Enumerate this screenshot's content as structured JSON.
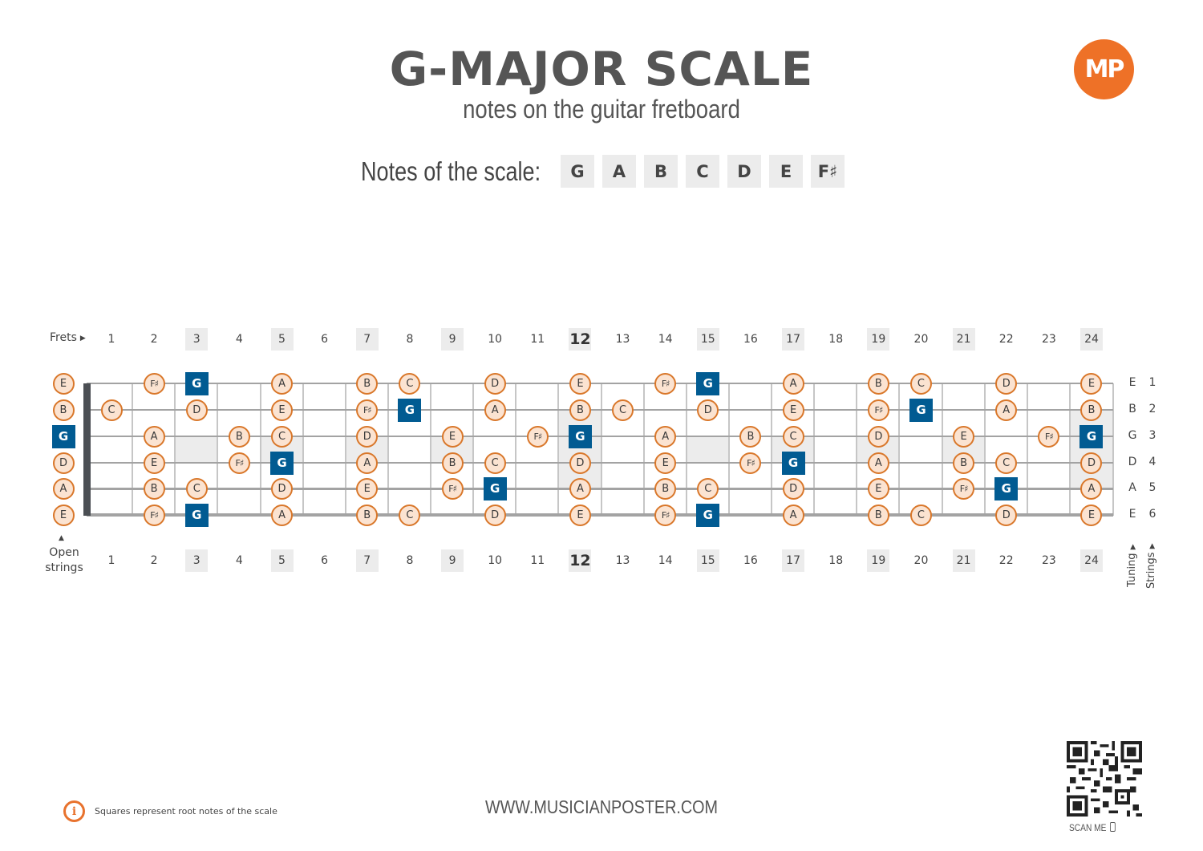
{
  "header": {
    "title": "G-MAJOR SCALE",
    "subtitle": "notes on the guitar fretboard",
    "logo_text": "MP"
  },
  "scale": {
    "label": "Notes of the scale:",
    "notes": [
      "G",
      "A",
      "B",
      "C",
      "D",
      "E",
      "F♯"
    ]
  },
  "colors": {
    "accent_orange": "#ee7127",
    "note_fill": "#fbe3d1",
    "note_border": "#d9772a",
    "root_blue": "#015b92",
    "marker_gray": "#ececec"
  },
  "fretboard": {
    "frets_label": "Frets",
    "open_strings_label": "Open strings",
    "tuning_label": "Tuning",
    "strings_label": "Strings",
    "fret_numbers": [
      1,
      2,
      3,
      4,
      5,
      6,
      7,
      8,
      9,
      10,
      11,
      12,
      13,
      14,
      15,
      16,
      17,
      18,
      19,
      20,
      21,
      22,
      23,
      24
    ],
    "marked_frets": [
      3,
      5,
      7,
      9,
      12,
      15,
      17,
      19,
      21,
      24
    ],
    "double_marked_frets": [
      12,
      24
    ],
    "strings": [
      {
        "number": "1",
        "tuning": "E"
      },
      {
        "number": "2",
        "tuning": "B"
      },
      {
        "number": "3",
        "tuning": "G"
      },
      {
        "number": "4",
        "tuning": "D"
      },
      {
        "number": "5",
        "tuning": "A"
      },
      {
        "number": "6",
        "tuning": "E"
      }
    ],
    "notes": [
      {
        "s": 1,
        "f": 0,
        "n": "E"
      },
      {
        "s": 1,
        "f": 2,
        "n": "F♯"
      },
      {
        "s": 1,
        "f": 3,
        "n": "G",
        "root": true
      },
      {
        "s": 1,
        "f": 5,
        "n": "A"
      },
      {
        "s": 1,
        "f": 7,
        "n": "B"
      },
      {
        "s": 1,
        "f": 8,
        "n": "C"
      },
      {
        "s": 1,
        "f": 10,
        "n": "D"
      },
      {
        "s": 1,
        "f": 12,
        "n": "E"
      },
      {
        "s": 1,
        "f": 14,
        "n": "F♯"
      },
      {
        "s": 1,
        "f": 15,
        "n": "G",
        "root": true
      },
      {
        "s": 1,
        "f": 17,
        "n": "A"
      },
      {
        "s": 1,
        "f": 19,
        "n": "B"
      },
      {
        "s": 1,
        "f": 20,
        "n": "C"
      },
      {
        "s": 1,
        "f": 22,
        "n": "D"
      },
      {
        "s": 1,
        "f": 24,
        "n": "E"
      },
      {
        "s": 2,
        "f": 0,
        "n": "B"
      },
      {
        "s": 2,
        "f": 1,
        "n": "C"
      },
      {
        "s": 2,
        "f": 3,
        "n": "D"
      },
      {
        "s": 2,
        "f": 5,
        "n": "E"
      },
      {
        "s": 2,
        "f": 7,
        "n": "F♯"
      },
      {
        "s": 2,
        "f": 8,
        "n": "G",
        "root": true
      },
      {
        "s": 2,
        "f": 10,
        "n": "A"
      },
      {
        "s": 2,
        "f": 12,
        "n": "B"
      },
      {
        "s": 2,
        "f": 13,
        "n": "C"
      },
      {
        "s": 2,
        "f": 15,
        "n": "D"
      },
      {
        "s": 2,
        "f": 17,
        "n": "E"
      },
      {
        "s": 2,
        "f": 19,
        "n": "F♯"
      },
      {
        "s": 2,
        "f": 20,
        "n": "G",
        "root": true
      },
      {
        "s": 2,
        "f": 22,
        "n": "A"
      },
      {
        "s": 2,
        "f": 24,
        "n": "B"
      },
      {
        "s": 3,
        "f": 0,
        "n": "G",
        "root": true
      },
      {
        "s": 3,
        "f": 2,
        "n": "A"
      },
      {
        "s": 3,
        "f": 4,
        "n": "B"
      },
      {
        "s": 3,
        "f": 5,
        "n": "C"
      },
      {
        "s": 3,
        "f": 7,
        "n": "D"
      },
      {
        "s": 3,
        "f": 9,
        "n": "E"
      },
      {
        "s": 3,
        "f": 11,
        "n": "F♯"
      },
      {
        "s": 3,
        "f": 12,
        "n": "G",
        "root": true
      },
      {
        "s": 3,
        "f": 14,
        "n": "A"
      },
      {
        "s": 3,
        "f": 16,
        "n": "B"
      },
      {
        "s": 3,
        "f": 17,
        "n": "C"
      },
      {
        "s": 3,
        "f": 19,
        "n": "D"
      },
      {
        "s": 3,
        "f": 21,
        "n": "E"
      },
      {
        "s": 3,
        "f": 23,
        "n": "F♯"
      },
      {
        "s": 3,
        "f": 24,
        "n": "G",
        "root": true
      },
      {
        "s": 4,
        "f": 0,
        "n": "D"
      },
      {
        "s": 4,
        "f": 2,
        "n": "E"
      },
      {
        "s": 4,
        "f": 4,
        "n": "F♯"
      },
      {
        "s": 4,
        "f": 5,
        "n": "G",
        "root": true
      },
      {
        "s": 4,
        "f": 7,
        "n": "A"
      },
      {
        "s": 4,
        "f": 9,
        "n": "B"
      },
      {
        "s": 4,
        "f": 10,
        "n": "C"
      },
      {
        "s": 4,
        "f": 12,
        "n": "D"
      },
      {
        "s": 4,
        "f": 14,
        "n": "E"
      },
      {
        "s": 4,
        "f": 16,
        "n": "F♯"
      },
      {
        "s": 4,
        "f": 17,
        "n": "G",
        "root": true
      },
      {
        "s": 4,
        "f": 19,
        "n": "A"
      },
      {
        "s": 4,
        "f": 21,
        "n": "B"
      },
      {
        "s": 4,
        "f": 22,
        "n": "C"
      },
      {
        "s": 4,
        "f": 24,
        "n": "D"
      },
      {
        "s": 5,
        "f": 0,
        "n": "A"
      },
      {
        "s": 5,
        "f": 2,
        "n": "B"
      },
      {
        "s": 5,
        "f": 3,
        "n": "C"
      },
      {
        "s": 5,
        "f": 5,
        "n": "D"
      },
      {
        "s": 5,
        "f": 7,
        "n": "E"
      },
      {
        "s": 5,
        "f": 9,
        "n": "F♯"
      },
      {
        "s": 5,
        "f": 10,
        "n": "G",
        "root": true
      },
      {
        "s": 5,
        "f": 12,
        "n": "A"
      },
      {
        "s": 5,
        "f": 14,
        "n": "B"
      },
      {
        "s": 5,
        "f": 15,
        "n": "C"
      },
      {
        "s": 5,
        "f": 17,
        "n": "D"
      },
      {
        "s": 5,
        "f": 19,
        "n": "E"
      },
      {
        "s": 5,
        "f": 21,
        "n": "F♯"
      },
      {
        "s": 5,
        "f": 22,
        "n": "G",
        "root": true
      },
      {
        "s": 5,
        "f": 24,
        "n": "A"
      },
      {
        "s": 6,
        "f": 0,
        "n": "E"
      },
      {
        "s": 6,
        "f": 2,
        "n": "F♯"
      },
      {
        "s": 6,
        "f": 3,
        "n": "G",
        "root": true
      },
      {
        "s": 6,
        "f": 5,
        "n": "A"
      },
      {
        "s": 6,
        "f": 7,
        "n": "B"
      },
      {
        "s": 6,
        "f": 8,
        "n": "C"
      },
      {
        "s": 6,
        "f": 10,
        "n": "D"
      },
      {
        "s": 6,
        "f": 12,
        "n": "E"
      },
      {
        "s": 6,
        "f": 14,
        "n": "F♯"
      },
      {
        "s": 6,
        "f": 15,
        "n": "G",
        "root": true
      },
      {
        "s": 6,
        "f": 17,
        "n": "A"
      },
      {
        "s": 6,
        "f": 19,
        "n": "B"
      },
      {
        "s": 6,
        "f": 20,
        "n": "C"
      },
      {
        "s": 6,
        "f": 22,
        "n": "D"
      },
      {
        "s": 6,
        "f": 24,
        "n": "E"
      }
    ]
  },
  "footer": {
    "info_icon": "info-icon",
    "info_text": "Squares represent root notes of the scale",
    "website": "WWW.MUSICIANPOSTER.COM",
    "scan_label": "SCAN ME"
  }
}
